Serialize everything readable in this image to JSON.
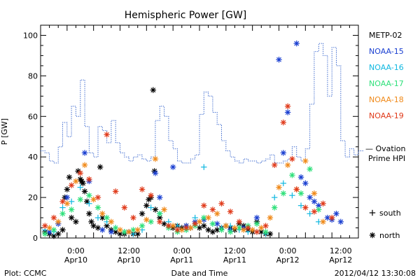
{
  "footer": {
    "plot_source": "Plot: CCMC",
    "timestamp": "2012/04/12 13:30:08"
  },
  "chart_data": {
    "type": "scatter",
    "title": "Hemispheric Power [GW]",
    "xlabel": "Date and Time",
    "ylabel": "P [GW]",
    "xlim": [
      "2012-04-09 16:00",
      "2012-04-12 16:00"
    ],
    "ylim": [
      0,
      105
    ],
    "yticks": [
      0,
      20,
      40,
      60,
      80,
      100
    ],
    "xtick_labels": [
      {
        "time": "2012-04-10 00:00",
        "line1": "0:00",
        "line2": "Apr10"
      },
      {
        "time": "2012-04-10 12:00",
        "line1": "12:00",
        "line2": "Apr10"
      },
      {
        "time": "2012-04-11 00:00",
        "line1": "0:00",
        "line2": "Apr11"
      },
      {
        "time": "2012-04-11 12:00",
        "line1": "12:00",
        "line2": "Apr11"
      },
      {
        "time": "2012-04-12 00:00",
        "line1": "0:00",
        "line2": "Apr12"
      },
      {
        "time": "2012-04-12 12:00",
        "line1": "12:00",
        "line2": "Apr12"
      }
    ],
    "markers": {
      "south": "+",
      "north": "*"
    },
    "marker_legend": [
      {
        "symbol": "+",
        "label": "south"
      },
      {
        "symbol": "*",
        "label": "north"
      }
    ],
    "colors": {
      "METP-02": "#000000",
      "NOAA-15": "#1a3fd1",
      "NOAA-16": "#10b8e0",
      "NOAA-17": "#2ee07a",
      "NOAA-18": "#f08a1a",
      "NOAA-19": "#e03a1a",
      "ovation": "#2255c8"
    },
    "legend": [
      {
        "name": "METP-02",
        "color": "#000000"
      },
      {
        "name": "NOAA-15",
        "color": "#1a3fd1"
      },
      {
        "name": "NOAA-16",
        "color": "#10b8e0"
      },
      {
        "name": "NOAA-17",
        "color": "#2ee07a"
      },
      {
        "name": "NOAA-18",
        "color": "#f08a1a"
      },
      {
        "name": "NOAA-19",
        "color": "#e03a1a"
      }
    ],
    "ovation": {
      "label_line1": "— Ovation",
      "label_line2": "Prime HPI",
      "end_value": 43,
      "x_hours": [
        0,
        1,
        2,
        3,
        4,
        5,
        6,
        7,
        8,
        9,
        10,
        11,
        12,
        13,
        14,
        15,
        16,
        17,
        18,
        19,
        20,
        21,
        22,
        23,
        24,
        25,
        26,
        27,
        28,
        29,
        30,
        31,
        32,
        33,
        34,
        35,
        36,
        37,
        38,
        39,
        40,
        41,
        42,
        43,
        44,
        45,
        46,
        47,
        48,
        49,
        50,
        51,
        52,
        53,
        54,
        55,
        56,
        57,
        58,
        59,
        60,
        61,
        62,
        63,
        64,
        65,
        66,
        67,
        68,
        69,
        70,
        71,
        72
      ],
      "values": [
        43,
        42,
        38,
        37,
        45,
        57,
        50,
        65,
        60,
        78,
        55,
        42,
        40,
        55,
        53,
        47,
        58,
        47,
        42,
        40,
        38,
        40,
        41,
        39,
        38,
        40,
        58,
        65,
        60,
        48,
        44,
        38,
        37,
        37,
        39,
        41,
        61,
        72,
        70,
        62,
        56,
        48,
        43,
        40,
        38,
        37,
        39,
        38,
        38,
        37,
        38,
        39,
        41,
        37,
        37,
        38,
        39,
        45,
        40,
        38,
        44,
        66,
        92,
        96,
        90,
        70,
        94,
        85,
        48,
        40,
        44,
        41,
        43
      ]
    },
    "series": [
      {
        "name": "METP-02",
        "color": "#000000",
        "marker": "*",
        "points": [
          [
            1,
            3
          ],
          [
            2,
            2
          ],
          [
            3,
            1
          ],
          [
            4,
            2
          ],
          [
            5,
            4
          ],
          [
            5.5,
            20
          ],
          [
            6,
            24
          ],
          [
            6.5,
            30
          ],
          [
            7,
            10
          ],
          [
            8,
            8
          ],
          [
            8.5,
            33
          ],
          [
            9,
            29
          ],
          [
            9.3,
            28
          ],
          [
            9.6,
            27
          ],
          [
            10,
            23
          ],
          [
            10.5,
            18
          ],
          [
            11,
            12
          ],
          [
            11.5,
            8
          ],
          [
            12,
            6
          ],
          [
            13,
            5
          ],
          [
            13.5,
            35
          ],
          [
            14,
            10
          ],
          [
            15,
            6
          ],
          [
            16,
            4
          ],
          [
            17,
            3
          ],
          [
            18,
            2
          ],
          [
            19,
            2
          ],
          [
            20,
            3
          ],
          [
            21,
            2
          ],
          [
            22,
            2
          ],
          [
            23,
            12
          ],
          [
            24,
            16
          ],
          [
            24.5,
            19
          ],
          [
            25,
            20
          ],
          [
            25.5,
            73
          ],
          [
            25.8,
            33
          ],
          [
            26,
            14
          ],
          [
            27,
            10
          ],
          [
            28,
            7
          ],
          [
            29,
            6
          ],
          [
            30,
            5
          ],
          [
            31,
            6
          ],
          [
            32,
            5
          ],
          [
            33,
            6
          ],
          [
            34,
            5
          ],
          [
            35,
            7
          ],
          [
            36,
            5
          ],
          [
            37,
            6
          ],
          [
            38,
            4
          ],
          [
            39,
            3
          ],
          [
            40,
            4
          ],
          [
            41,
            5
          ],
          [
            42,
            6
          ],
          [
            43,
            5
          ],
          [
            44,
            4
          ],
          [
            45,
            7
          ],
          [
            46,
            6
          ],
          [
            47,
            4
          ],
          [
            48,
            3
          ],
          [
            49,
            8
          ],
          [
            50,
            3
          ],
          [
            51,
            2
          ],
          [
            52,
            2
          ]
        ]
      },
      {
        "name": "NOAA-15",
        "color": "#1a3fd1",
        "marker": "*",
        "points": [
          [
            2,
            3
          ],
          [
            4,
            7
          ],
          [
            6,
            20
          ],
          [
            10,
            42
          ],
          [
            11,
            28
          ],
          [
            14,
            4
          ],
          [
            16,
            3
          ],
          [
            20,
            3
          ],
          [
            26,
            32
          ],
          [
            27,
            20
          ],
          [
            30,
            35
          ],
          [
            33,
            6
          ],
          [
            35,
            8
          ],
          [
            37,
            9
          ],
          [
            40,
            7
          ],
          [
            43,
            4
          ],
          [
            46,
            5
          ],
          [
            49,
            10
          ],
          [
            54,
            88
          ],
          [
            55,
            42
          ],
          [
            56,
            62
          ],
          [
            58,
            96
          ],
          [
            59,
            30
          ],
          [
            60,
            27
          ],
          [
            61,
            20
          ],
          [
            62,
            18
          ],
          [
            63,
            16
          ],
          [
            65,
            10
          ],
          [
            66,
            9
          ],
          [
            67,
            12
          ],
          [
            68,
            8
          ]
        ]
      },
      {
        "name": "NOAA-16",
        "color": "#10b8e0",
        "marker": "+",
        "points": [
          [
            1,
            4
          ],
          [
            3,
            3
          ],
          [
            5,
            15
          ],
          [
            7,
            18
          ],
          [
            9,
            25
          ],
          [
            11,
            17
          ],
          [
            13,
            10
          ],
          [
            15,
            8
          ],
          [
            17,
            5
          ],
          [
            19,
            3
          ],
          [
            21,
            2
          ],
          [
            23,
            4
          ],
          [
            25,
            15
          ],
          [
            27,
            12
          ],
          [
            29,
            8
          ],
          [
            31,
            6
          ],
          [
            33,
            4
          ],
          [
            35,
            10
          ],
          [
            37,
            35
          ],
          [
            39,
            7
          ],
          [
            41,
            5
          ],
          [
            43,
            6
          ],
          [
            45,
            4
          ],
          [
            47,
            3
          ],
          [
            49,
            3
          ],
          [
            51,
            2
          ],
          [
            53,
            20
          ],
          [
            55,
            27
          ],
          [
            57,
            21
          ],
          [
            59,
            16
          ],
          [
            61,
            12
          ],
          [
            63,
            8
          ]
        ]
      },
      {
        "name": "NOAA-17",
        "color": "#2ee07a",
        "marker": "*",
        "points": [
          [
            1,
            2
          ],
          [
            3,
            4
          ],
          [
            5,
            12
          ],
          [
            7,
            14
          ],
          [
            9,
            19
          ],
          [
            11,
            21
          ],
          [
            13,
            15
          ],
          [
            15,
            10
          ],
          [
            17,
            5
          ],
          [
            19,
            3
          ],
          [
            21,
            4
          ],
          [
            23,
            6
          ],
          [
            25,
            8
          ],
          [
            27,
            12
          ],
          [
            29,
            5
          ],
          [
            31,
            3
          ],
          [
            33,
            4
          ],
          [
            35,
            6
          ],
          [
            37,
            10
          ],
          [
            39,
            7
          ],
          [
            41,
            4
          ],
          [
            43,
            3
          ],
          [
            45,
            5
          ],
          [
            47,
            6
          ],
          [
            49,
            7
          ],
          [
            51,
            3
          ],
          [
            53,
            15
          ],
          [
            55,
            22
          ],
          [
            57,
            31
          ],
          [
            59,
            22
          ],
          [
            61,
            34
          ],
          [
            63,
            14
          ]
        ]
      },
      {
        "name": "NOAA-18",
        "color": "#f08a1a",
        "marker": "*",
        "points": [
          [
            2,
            5
          ],
          [
            4,
            8
          ],
          [
            6,
            17
          ],
          [
            8,
            28
          ],
          [
            10,
            36
          ],
          [
            12,
            19
          ],
          [
            14,
            12
          ],
          [
            16,
            8
          ],
          [
            18,
            4
          ],
          [
            20,
            3
          ],
          [
            22,
            4
          ],
          [
            24,
            9
          ],
          [
            26,
            39
          ],
          [
            28,
            14
          ],
          [
            30,
            6
          ],
          [
            32,
            4
          ],
          [
            34,
            5
          ],
          [
            36,
            8
          ],
          [
            38,
            10
          ],
          [
            40,
            12
          ],
          [
            42,
            6
          ],
          [
            44,
            5
          ],
          [
            46,
            4
          ],
          [
            48,
            4
          ],
          [
            50,
            5
          ],
          [
            52,
            10
          ],
          [
            54,
            25
          ],
          [
            56,
            36
          ],
          [
            58,
            24
          ],
          [
            60,
            38
          ],
          [
            62,
            22
          ],
          [
            64,
            8
          ]
        ]
      },
      {
        "name": "NOAA-19",
        "color": "#e03a1a",
        "marker": "*",
        "points": [
          [
            1,
            6
          ],
          [
            3,
            10
          ],
          [
            5,
            18
          ],
          [
            7,
            26
          ],
          [
            9,
            32
          ],
          [
            11,
            29
          ],
          [
            13,
            20
          ],
          [
            15,
            51
          ],
          [
            17,
            23
          ],
          [
            19,
            15
          ],
          [
            21,
            10
          ],
          [
            23,
            24
          ],
          [
            25,
            21
          ],
          [
            27,
            8
          ],
          [
            29,
            6
          ],
          [
            31,
            4
          ],
          [
            33,
            5
          ],
          [
            35,
            7
          ],
          [
            37,
            16
          ],
          [
            39,
            14
          ],
          [
            41,
            17
          ],
          [
            43,
            13
          ],
          [
            45,
            8
          ],
          [
            47,
            5
          ],
          [
            49,
            3
          ],
          [
            51,
            6
          ],
          [
            53,
            36
          ],
          [
            55,
            57
          ],
          [
            56,
            65
          ],
          [
            57,
            39
          ],
          [
            58,
            24
          ],
          [
            60,
            15
          ],
          [
            62,
            13
          ],
          [
            64,
            17
          ],
          [
            66,
            10
          ]
        ]
      }
    ]
  }
}
